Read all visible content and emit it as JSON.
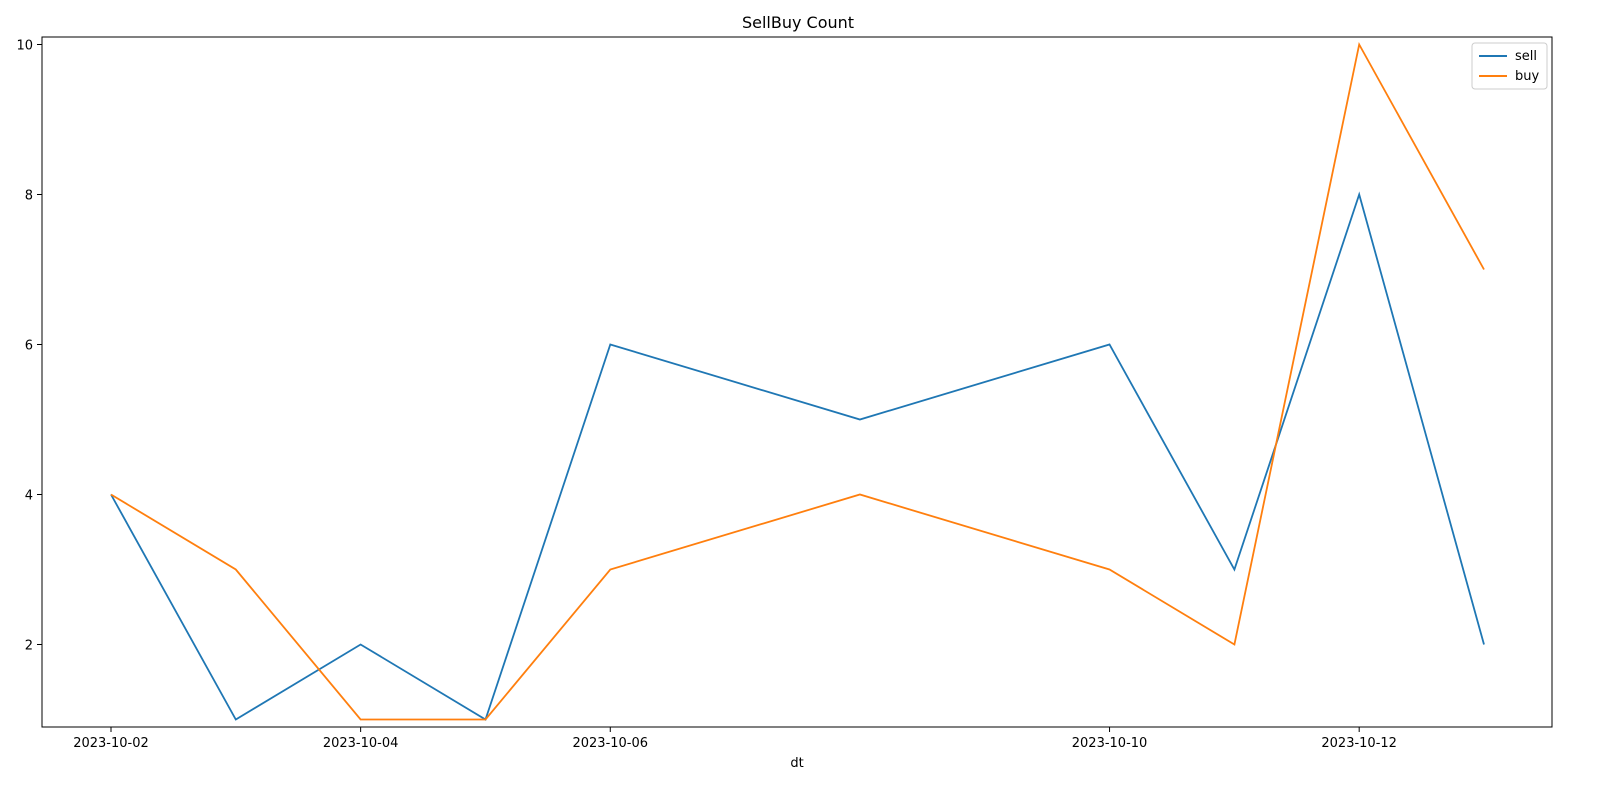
{
  "chart_data": {
    "type": "line",
    "title": "SellBuy Count",
    "xlabel": "dt",
    "ylabel": "",
    "x": [
      "2023-10-02",
      "2023-10-03",
      "2023-10-04",
      "2023-10-05",
      "2023-10-06",
      "2023-10-08",
      "2023-10-10",
      "2023-10-11",
      "2023-10-12",
      "2023-10-13"
    ],
    "xticks": [
      "2023-10-02",
      "2023-10-04",
      "2023-10-06",
      "2023-10-10",
      "2023-10-12"
    ],
    "yticks": [
      2,
      4,
      6,
      8,
      10
    ],
    "ylim": [
      0.9,
      10.1
    ],
    "series": [
      {
        "name": "sell",
        "color": "#1f77b4",
        "values": [
          4,
          1,
          2,
          1,
          6,
          5,
          6,
          3,
          8,
          2
        ]
      },
      {
        "name": "buy",
        "color": "#ff7f0e",
        "values": [
          4,
          3,
          1,
          1,
          3,
          4,
          3,
          2,
          10,
          7
        ]
      }
    ],
    "legend_position": "top-right",
    "grid": false
  }
}
